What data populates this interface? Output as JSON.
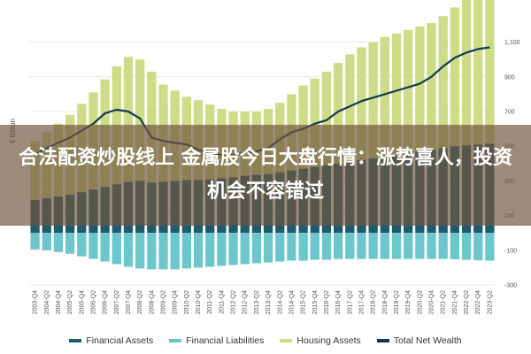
{
  "overlay": {
    "title": "合法配资炒股线上 金属股今日大盘行情：涨势喜人，投资机会不容错过"
  },
  "chart_data": {
    "type": "bar",
    "ylabel": "€ Billion",
    "ylim": [
      -300,
      1200
    ],
    "yticks": [
      1100,
      900,
      700,
      500,
      300,
      100,
      -100,
      -300
    ],
    "grid": true,
    "legend_position": "bottom",
    "colors": {
      "financial_assets": "#1f5b6e",
      "financial_liabilities": "#6cc7cd",
      "housing_assets": "#cddc87",
      "net_wealth": "#16394c"
    },
    "categories": [
      "2003-Q4",
      "2004-Q2",
      "2004-Q4",
      "2005-Q2",
      "2005-Q4",
      "2006-Q2",
      "2006-Q4",
      "2007-Q2",
      "2007-Q4",
      "2008-Q2",
      "2008-Q4",
      "2009-Q2",
      "2009-Q4",
      "2010-Q2",
      "2010-Q4",
      "2011-Q2",
      "2011-Q4",
      "2012-Q2",
      "2012-Q4",
      "2013-Q2",
      "2013-Q4",
      "2014-Q2",
      "2014-Q4",
      "2015-Q2",
      "2015-Q4",
      "2016-Q2",
      "2016-Q4",
      "2017-Q2",
      "2017-Q4",
      "2018-Q2",
      "2018-Q4",
      "2019-Q2",
      "2019-Q4",
      "2020-Q2",
      "2020-Q4",
      "2021-Q2",
      "2021-Q4",
      "2022-Q2",
      "2022-Q4",
      "2023-Q2"
    ],
    "series": [
      {
        "name": "Financial Assets",
        "values": [
          190,
          200,
          210,
          220,
          235,
          250,
          265,
          280,
          295,
          300,
          290,
          295,
          300,
          305,
          305,
          310,
          315,
          320,
          330,
          335,
          340,
          350,
          360,
          370,
          380,
          390,
          400,
          410,
          420,
          430,
          440,
          450,
          460,
          470,
          480,
          490,
          500,
          505,
          510,
          515
        ]
      },
      {
        "name": "Financial Liabilities",
        "values": [
          -95,
          -100,
          -110,
          -120,
          -135,
          -150,
          -165,
          -180,
          -195,
          -205,
          -210,
          -210,
          -210,
          -205,
          -200,
          -195,
          -190,
          -185,
          -180,
          -175,
          -170,
          -165,
          -160,
          -160,
          -155,
          -155,
          -150,
          -150,
          -150,
          -150,
          -150,
          -150,
          -150,
          -150,
          -150,
          -150,
          -152,
          -155,
          -158,
          -160
        ]
      },
      {
        "name": "Housing Assets",
        "values": [
          340,
          380,
          420,
          460,
          510,
          560,
          620,
          680,
          720,
          700,
          640,
          560,
          520,
          480,
          460,
          430,
          400,
          380,
          370,
          365,
          375,
          400,
          440,
          480,
          510,
          540,
          580,
          620,
          650,
          670,
          690,
          700,
          710,
          720,
          730,
          760,
          800,
          850,
          890,
          900
        ]
      },
      {
        "name": "Total Net Wealth",
        "values": [
          450,
          490,
          520,
          550,
          590,
          630,
          690,
          710,
          700,
          660,
          550,
          530,
          520,
          510,
          480,
          460,
          450,
          450,
          460,
          470,
          490,
          540,
          580,
          600,
          630,
          650,
          700,
          730,
          760,
          780,
          800,
          820,
          840,
          860,
          900,
          960,
          1010,
          1040,
          1060,
          1070
        ]
      }
    ]
  },
  "legend": [
    {
      "label": "Financial Assets",
      "color": "#1f5b6e"
    },
    {
      "label": "Financial Liabilities",
      "color": "#6cc7cd"
    },
    {
      "label": "Housing Assets",
      "color": "#cddc87"
    },
    {
      "label": "Total Net Wealth",
      "color": "#16394c"
    }
  ]
}
